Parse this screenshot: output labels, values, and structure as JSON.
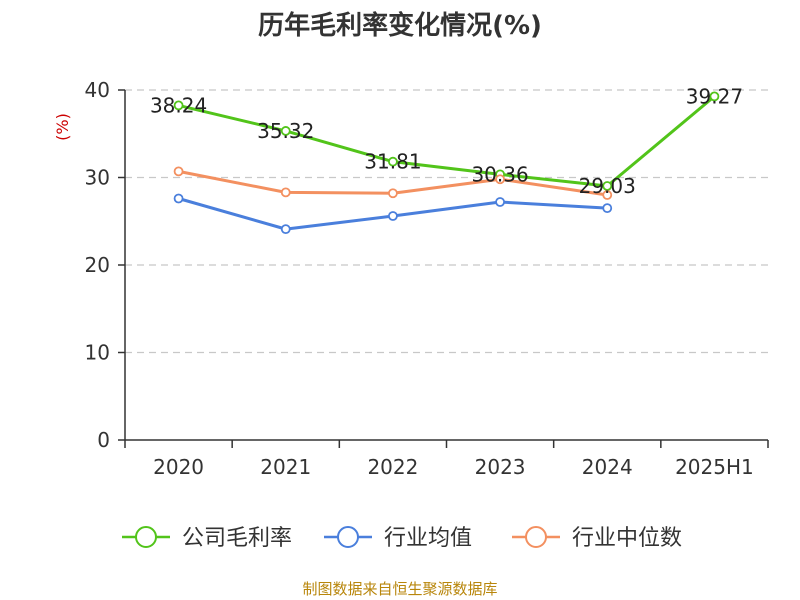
{
  "chart_data": {
    "type": "line",
    "title": "历年毛利率变化情况(%)",
    "ylabel": "(%)",
    "xlabel": "",
    "categories": [
      "2020",
      "2021",
      "2022",
      "2023",
      "2024",
      "2025H1"
    ],
    "ylim": [
      0,
      40
    ],
    "yticks": [
      0,
      10,
      20,
      30,
      40
    ],
    "grid": "horizontal-dashed",
    "legend_position": "bottom",
    "series": [
      {
        "name": "公司毛利率",
        "color": "#52c41a",
        "values": [
          38.24,
          35.32,
          31.81,
          30.36,
          29.03,
          39.27
        ],
        "data_labels": [
          "38.24",
          "35.32",
          "31.81",
          "30.36",
          "29.03",
          "39.27"
        ]
      },
      {
        "name": "行业均值",
        "color": "#4a7fdc",
        "values": [
          27.6,
          24.1,
          25.6,
          27.2,
          26.5,
          null
        ]
      },
      {
        "name": "行业中位数",
        "color": "#f39060",
        "values": [
          30.7,
          28.3,
          28.2,
          29.8,
          28.0,
          null
        ]
      }
    ]
  },
  "source": "制图数据来自恒生聚源数据库"
}
